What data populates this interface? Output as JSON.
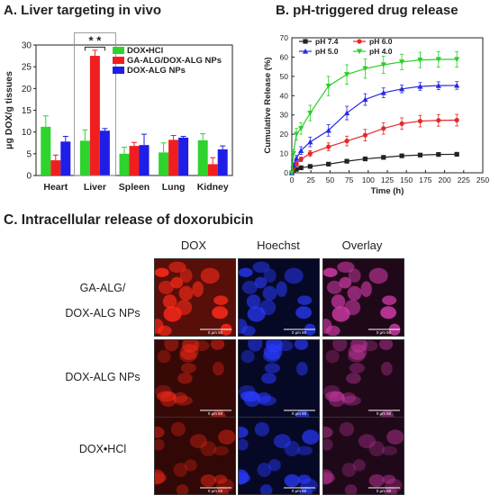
{
  "panelA": {
    "title": "A. Liver targeting in vivo",
    "chart_data": {
      "type": "bar",
      "categories": [
        "Heart",
        "Liver",
        "Spleen",
        "Lung",
        "Kidney"
      ],
      "ylabel": "μg DOX/g tissues",
      "ylim": [
        0,
        30
      ],
      "yticks": [
        "0",
        "5",
        "10",
        "15",
        "20",
        "25",
        "30"
      ],
      "legend_position": "top-right",
      "series": [
        {
          "name": "DOX•HCl",
          "color": "#2ed32e",
          "values": [
            11.2,
            8.0,
            5.0,
            5.3,
            8.1
          ],
          "errors": [
            2.5,
            2.5,
            1.5,
            2.2,
            1.5
          ]
        },
        {
          "name": "GA-ALG/DOX-ALG NPs",
          "color": "#f01e1e",
          "values": [
            3.5,
            27.5,
            6.8,
            8.2,
            2.6
          ],
          "errors": [
            1.2,
            1.3,
            0.8,
            1.0,
            1.5
          ]
        },
        {
          "name": "DOX-ALG NPs",
          "color": "#1e1ee6",
          "values": [
            7.8,
            10.3,
            7.0,
            8.7,
            6.0
          ],
          "errors": [
            1.2,
            0.5,
            2.5,
            0.3,
            0.8
          ]
        }
      ],
      "annotation": "* *"
    }
  },
  "panelB": {
    "title": "B. pH-triggered drug release",
    "chart_data": {
      "type": "line",
      "xlabel": "Time (h)",
      "ylabel": "Cumulative Release (%)",
      "xlim": [
        0,
        250
      ],
      "ylim": [
        0,
        70
      ],
      "xticks": [
        "0",
        "25",
        "50",
        "75",
        "100",
        "125",
        "150",
        "175",
        "200",
        "225",
        "250"
      ],
      "yticks": [
        "0",
        "10",
        "20",
        "30",
        "40",
        "50",
        "60",
        "70"
      ],
      "legend_position": "top-left",
      "x": [
        0,
        2,
        6,
        12,
        24,
        48,
        72,
        96,
        120,
        144,
        168,
        192,
        216
      ],
      "series": [
        {
          "name": "pH 7.4",
          "color": "#222222",
          "marker": "square",
          "values": [
            0,
            1.0,
            1.8,
            2.6,
            3.3,
            4.5,
            6.0,
            7.2,
            8.0,
            8.8,
            9.2,
            9.5,
            9.6
          ],
          "errors": [
            0,
            0.3,
            0.5,
            0.5,
            0.6,
            0.6,
            0.6,
            0.6,
            0.7,
            0.7,
            0.8,
            0.8,
            0.8
          ]
        },
        {
          "name": "pH 6.0",
          "color": "#e62828",
          "marker": "circle",
          "values": [
            0,
            2.5,
            4.5,
            7.0,
            10.0,
            13.5,
            16.5,
            19.5,
            23.0,
            25.5,
            26.8,
            27.2,
            27.3
          ],
          "errors": [
            0,
            0.6,
            1.0,
            1.2,
            1.5,
            2.0,
            2.5,
            3.0,
            3.0,
            3.0,
            3.0,
            3.0,
            3.0
          ]
        },
        {
          "name": "pH 5.0",
          "color": "#2828e6",
          "marker": "triangle-up",
          "values": [
            0,
            4.0,
            7.5,
            11.5,
            16.0,
            22.0,
            31.0,
            38.0,
            41.5,
            43.5,
            44.8,
            45.2,
            45.3
          ],
          "errors": [
            0,
            1.0,
            1.5,
            2.0,
            2.5,
            3.0,
            3.5,
            3.0,
            2.5,
            2.0,
            2.0,
            2.0,
            2.0
          ]
        },
        {
          "name": "pH 4.0",
          "color": "#28d028",
          "marker": "triangle-down",
          "values": [
            0,
            10.0,
            20.0,
            23.0,
            31.0,
            45.0,
            51.0,
            54.0,
            56.0,
            57.5,
            58.5,
            58.8,
            58.8
          ],
          "errors": [
            0,
            2.0,
            3.0,
            3.0,
            4.0,
            5.0,
            5.0,
            5.0,
            4.5,
            4.0,
            4.0,
            4.0,
            4.0
          ]
        }
      ]
    }
  },
  "panelC": {
    "title": "C. Intracellular release of doxorubicin",
    "columns": [
      "DOX",
      "Hoechst",
      "Overlay"
    ],
    "rows": [
      {
        "label_lines": [
          "GA-ALG/",
          "DOX-ALG NPs"
        ]
      },
      {
        "label_lines": [
          "DOX-ALG  NPs"
        ]
      },
      {
        "label_lines": [
          "DOX•HCl"
        ]
      }
    ],
    "scalebar_label": "0     μm     50",
    "channel_colors": {
      "dox": "#ff2a1a",
      "hoechst": "#2a3aff",
      "overlay": "#d03aa8"
    }
  }
}
